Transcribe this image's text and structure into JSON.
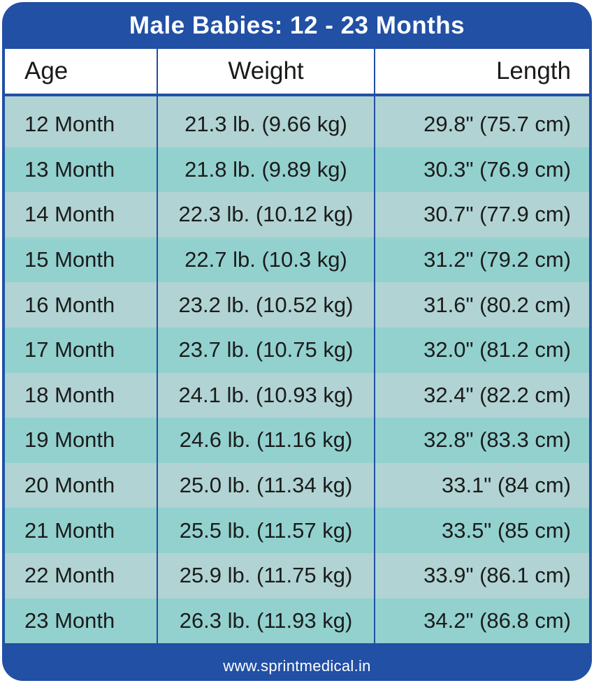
{
  "title": "Male Babies: 12 - 23 Months",
  "columns": {
    "age": "Age",
    "weight": "Weight",
    "length": "Length"
  },
  "rows": [
    {
      "age": "12 Month",
      "weight": "21.3 lb. (9.66 kg)",
      "length": "29.8\" (75.7 cm)"
    },
    {
      "age": "13 Month",
      "weight": "21.8 lb. (9.89 kg)",
      "length": "30.3\" (76.9 cm)"
    },
    {
      "age": "14 Month",
      "weight": "22.3 lb. (10.12 kg)",
      "length": "30.7\" (77.9 cm)"
    },
    {
      "age": "15 Month",
      "weight": "22.7 lb. (10.3 kg)",
      "length": "31.2\" (79.2 cm)"
    },
    {
      "age": "16 Month",
      "weight": "23.2 lb. (10.52 kg)",
      "length": "31.6\" (80.2 cm)"
    },
    {
      "age": "17 Month",
      "weight": "23.7 lb. (10.75 kg)",
      "length": "32.0\" (81.2 cm)"
    },
    {
      "age": "18 Month",
      "weight": "24.1 lb. (10.93 kg)",
      "length": "32.4\" (82.2 cm)"
    },
    {
      "age": "19 Month",
      "weight": "24.6 lb. (11.16 kg)",
      "length": "32.8\" (83.3 cm)"
    },
    {
      "age": "20 Month",
      "weight": "25.0 lb. (11.34 kg)",
      "length": "33.1\" (84 cm)"
    },
    {
      "age": "21 Month",
      "weight": "25.5 lb. (11.57 kg)",
      "length": "33.5\" (85 cm)"
    },
    {
      "age": "22 Month",
      "weight": "25.9 lb. (11.75 kg)",
      "length": "33.9\" (86.1 cm)"
    },
    {
      "age": "23 Month",
      "weight": "26.3 lb. (11.93 kg)",
      "length": "34.2\" (86.8 cm)"
    }
  ],
  "footer": "www.sprintmedical.in",
  "colors": {
    "frame": "#2150a4",
    "row_light": "#b1d3d3",
    "row_teal": "#93d1cf",
    "header_bg": "#ffffff"
  }
}
